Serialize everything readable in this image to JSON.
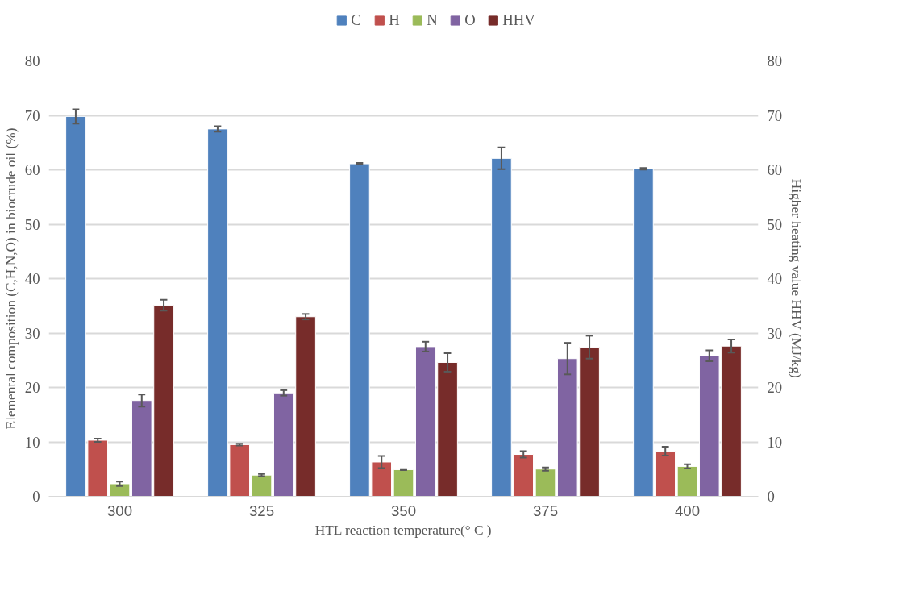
{
  "chart_data": {
    "type": "bar",
    "xlabel": "HTL reaction temperature(° C )",
    "ylabel": "Elemental composition (C,H,N,O) in biocrude oil (%)",
    "y2label": "Higher heating value HHV (MJ/kg)",
    "categories": [
      "300",
      "325",
      "350",
      "375",
      "400"
    ],
    "series": [
      {
        "name": "C",
        "color": "#4f81bd",
        "values": [
          69.8,
          67.5,
          61.1,
          62.1,
          60.2
        ],
        "errors": [
          1.3,
          0.5,
          0.15,
          2.0,
          0.15
        ]
      },
      {
        "name": "H",
        "color": "#c0504d",
        "values": [
          10.3,
          9.5,
          6.3,
          7.7,
          8.3
        ],
        "errors": [
          0.3,
          0.15,
          1.1,
          0.6,
          0.8
        ]
      },
      {
        "name": "N",
        "color": "#9bbb59",
        "values": [
          2.3,
          3.9,
          4.9,
          5.0,
          5.5
        ],
        "errors": [
          0.4,
          0.2,
          0.1,
          0.3,
          0.4
        ]
      },
      {
        "name": "O",
        "color": "#8064a2",
        "values": [
          17.6,
          19.0,
          27.5,
          25.3,
          25.8
        ],
        "errors": [
          1.1,
          0.5,
          0.9,
          2.9,
          1.0
        ]
      },
      {
        "name": "HHV",
        "color": "#772c2a",
        "values": [
          35.1,
          33.0,
          24.6,
          27.4,
          27.6
        ],
        "errors": [
          1.0,
          0.5,
          1.7,
          2.1,
          1.2
        ],
        "axis": "y2"
      }
    ],
    "ylim": [
      0,
      80
    ],
    "yticks": [
      0,
      10,
      20,
      30,
      40,
      50,
      60,
      70,
      80
    ],
    "y2lim": [
      0,
      80
    ],
    "y2ticks": [
      0,
      10,
      20,
      30,
      40,
      50,
      60,
      70,
      80
    ],
    "grid": "y",
    "legend": "top"
  }
}
